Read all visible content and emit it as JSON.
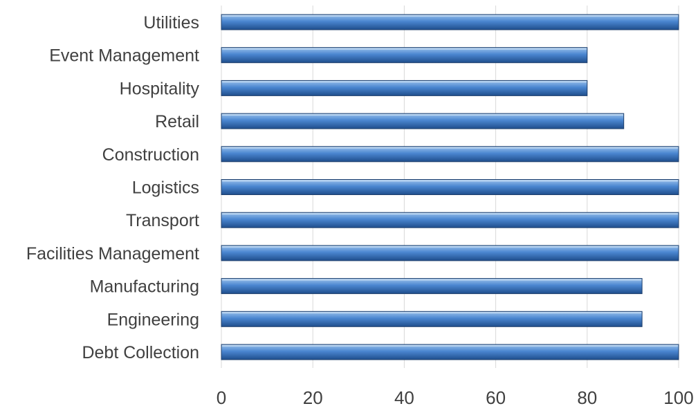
{
  "chart_data": {
    "type": "bar",
    "orientation": "horizontal",
    "categories": [
      "Utilities",
      "Event Management",
      "Hospitality",
      "Retail",
      "Construction",
      "Logistics",
      "Transport",
      "Facilities Management",
      "Manufacturing",
      "Engineering",
      "Debt Collection"
    ],
    "values": [
      100,
      80,
      80,
      88,
      100,
      100,
      100,
      100,
      92,
      92,
      100
    ],
    "xlim": [
      0,
      100
    ],
    "xticks": [
      "0",
      "20",
      "40",
      "60",
      "80",
      "100"
    ],
    "grid": true,
    "legend": "none",
    "colors": {
      "bar_top": "#9dc3ec",
      "bar_mid": "#4a86d0",
      "bar_bottom": "#1f4e8c",
      "bar_edge": "#1f3f6b",
      "grid": "#d9d9d9",
      "text": "#404040"
    }
  }
}
